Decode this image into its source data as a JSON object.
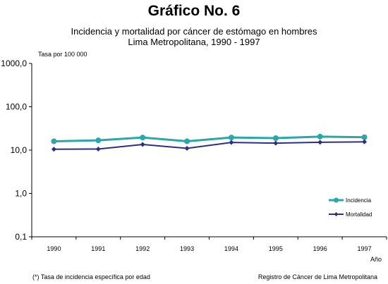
{
  "heading": "Gráfico No. 6",
  "subtitle_line1": "Incidencia y mortalidad por cáncer de estómago en hombres",
  "subtitle_line2": "Lima Metropolitana, 1990 - 1997",
  "footnote_left": "(*) Tasa de incidencia específica por edad",
  "footnote_right": "Registro de Cáncer de Lima Metropolitana",
  "chart_data": {
    "type": "line",
    "title": "Incidencia y mortalidad por cáncer de estómago en hombres Lima Metropolitana, 1990 - 1997",
    "ylabel": "Tasa por 100 000",
    "xlabel": "Año",
    "yscale": "log",
    "ylim": [
      0.1,
      1000
    ],
    "y_ticks": [
      1000,
      100,
      10,
      1,
      0.1
    ],
    "y_tick_labels": [
      "1000,0",
      "100,0",
      "10,0",
      "1,0",
      "0,1"
    ],
    "x": [
      "1990",
      "1991",
      "1992",
      "1993",
      "1994",
      "1995",
      "1996",
      "1997"
    ],
    "grid": false,
    "legend_position": "bottom-right",
    "series": [
      {
        "name": "Incidencia",
        "color": "#2aa7a7",
        "marker": "circle",
        "values": [
          16.0,
          16.8,
          19.5,
          16.0,
          19.5,
          18.9,
          20.5,
          19.8
        ]
      },
      {
        "name": "Mortalidad",
        "color": "#2e2e85",
        "marker": "diamond",
        "values": [
          10.5,
          10.6,
          13.5,
          11.0,
          15.0,
          14.5,
          15.2,
          15.5
        ]
      }
    ]
  }
}
